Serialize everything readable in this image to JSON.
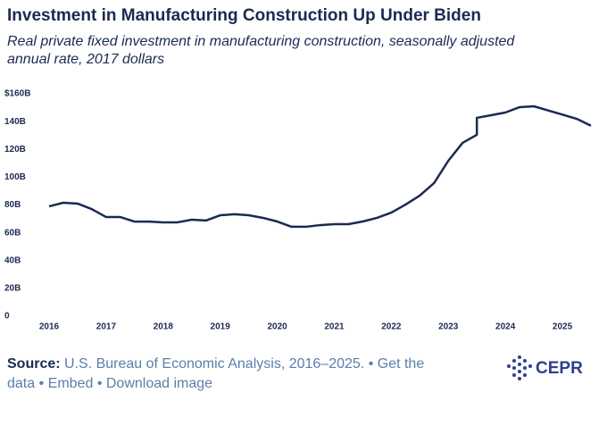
{
  "chart_data": {
    "type": "line",
    "title": "Investment in Manufacturing Construction Up Under Biden",
    "subtitle_lines": [
      "Real private fixed investment in manufacturing construction, seasonally adjusted",
      "annual rate, 2017 dollars"
    ],
    "x": [
      2016,
      2016.25,
      2016.5,
      2016.75,
      2017,
      2017.25,
      2017.5,
      2017.75,
      2018,
      2018.25,
      2018.5,
      2018.75,
      2019,
      2019.25,
      2019.5,
      2019.75,
      2020,
      2020.25,
      2020.5,
      2020.75,
      2021,
      2021.25,
      2021.5,
      2021.75,
      2022,
      2022.25,
      2022.5,
      2022.75,
      2023,
      2023.25,
      2023.5,
      2023.5,
      2023.75,
      2024,
      2024.25,
      2024.5,
      2024.75,
      2025,
      2025.25,
      2025.5
    ],
    "values": [
      79,
      81.6,
      81,
      77,
      71.3,
      71.3,
      68,
      68,
      67.5,
      67.5,
      69.4,
      68.8,
      72.6,
      73.3,
      72.6,
      70.7,
      68.1,
      64.3,
      64.3,
      65.5,
      66.2,
      66.2,
      68.1,
      70.7,
      74.5,
      80.3,
      86.8,
      95.8,
      111.8,
      124.7,
      130.5,
      142.7,
      144.6,
      146.5,
      150.4,
      151,
      148,
      145,
      142,
      137
    ],
    "color": "#1c2a52",
    "xlim": [
      2016,
      2025.5
    ],
    "xticks": [
      2016,
      2017,
      2018,
      2019,
      2020,
      2021,
      2022,
      2023,
      2024,
      2025
    ],
    "ylim": [
      0,
      160
    ],
    "yticks": [
      0,
      {
        "value": 20,
        "label": "20B"
      },
      {
        "value": 40,
        "label": "40B"
      },
      {
        "value": 60,
        "label": "60B"
      },
      {
        "value": 80,
        "label": "80B"
      },
      {
        "value": 100,
        "label": "100B"
      },
      {
        "value": 120,
        "label": "120B"
      },
      {
        "value": 140,
        "label": "140B"
      },
      {
        "value": 160,
        "label": "$160B"
      }
    ],
    "grid": false
  },
  "footer": {
    "source_label": "Source:",
    "source": "U.S. Bureau of Economic Analysis, 2016–2025.",
    "separator": "•",
    "links": [
      "Get the",
      "data",
      "Embed",
      "Download image"
    ]
  },
  "logo": {
    "text": "CEPR"
  }
}
